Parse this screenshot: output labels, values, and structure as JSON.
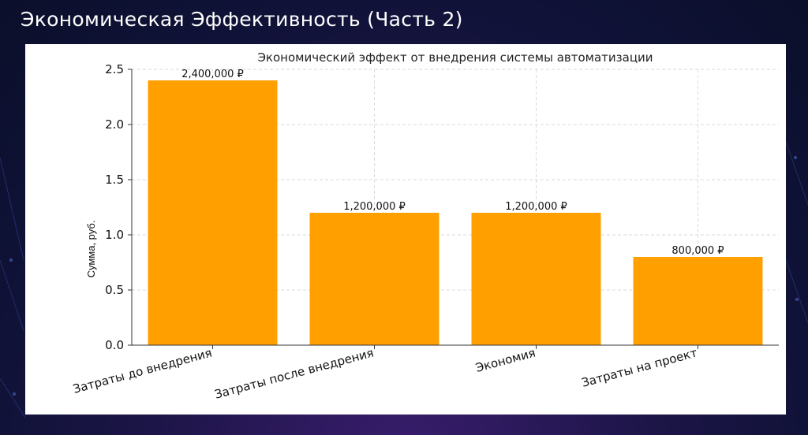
{
  "slide": {
    "title": "Экономическая Эффективность (Часть 2)"
  },
  "colors": {
    "bar": "#FFA000",
    "grid": "#d9d9d9",
    "panel": "#ffffff"
  },
  "chart_data": {
    "type": "bar",
    "title": "Экономический эффект от внедрения системы автоматизации",
    "xlabel": "",
    "ylabel": "Сумма, руб.",
    "categories": [
      "Затраты до внедрения",
      "Затраты после внедрения",
      "Экономия",
      "Затраты на проект"
    ],
    "values": [
      2400000,
      1200000,
      1200000,
      800000
    ],
    "value_labels": [
      "2,400,000 ₽",
      "1,200,000 ₽",
      "1,200,000 ₽",
      "800,000 ₽"
    ],
    "y_tick_labels": [
      "0.0",
      "0.5",
      "1.0",
      "1.5",
      "2.0",
      "2.5"
    ],
    "y_ticks": [
      0,
      500000,
      1000000,
      1500000,
      2000000,
      2500000
    ],
    "ylim": [
      0,
      2500000
    ],
    "grid": true,
    "legend": "none"
  }
}
